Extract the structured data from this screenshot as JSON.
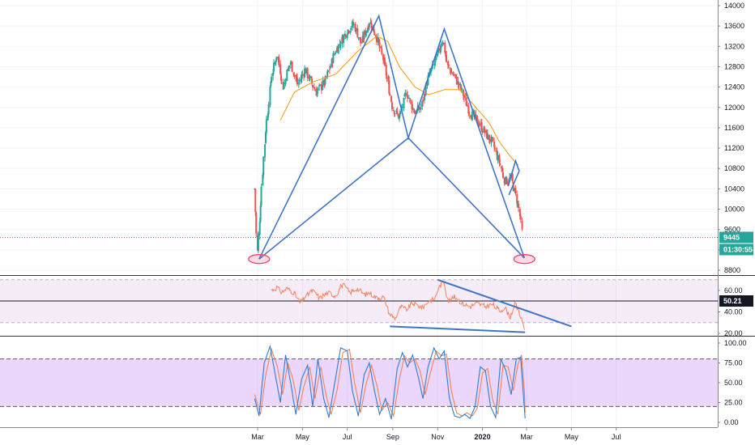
{
  "chart_data": [
    {
      "type": "candlestick",
      "pane": "price",
      "ylim": [
        8800,
        14000
      ],
      "yticks": [
        "14000",
        "13600",
        "13200",
        "12800",
        "12400",
        "12000",
        "11600",
        "11200",
        "10800",
        "10400",
        "10000",
        "9600",
        "9200",
        "8800"
      ],
      "last_price": 9445,
      "last_price_label": "9445",
      "countdown": "01:30:55",
      "candle_anchors": [
        [
          "2019-02-25",
          10400
        ],
        [
          "2019-03-01",
          9120
        ],
        [
          "2019-03-07",
          10500
        ],
        [
          "2019-03-12",
          11500
        ],
        [
          "2019-03-20",
          12600
        ],
        [
          "2019-03-28",
          13050
        ],
        [
          "2019-04-05",
          12400
        ],
        [
          "2019-04-15",
          12900
        ],
        [
          "2019-04-25",
          12450
        ],
        [
          "2019-05-05",
          12750
        ],
        [
          "2019-05-20",
          12300
        ],
        [
          "2019-06-01",
          12500
        ],
        [
          "2019-06-15",
          13100
        ],
        [
          "2019-07-01",
          13500
        ],
        [
          "2019-07-10",
          13650
        ],
        [
          "2019-07-20",
          13250
        ],
        [
          "2019-08-01",
          13700
        ],
        [
          "2019-08-10",
          13400
        ],
        [
          "2019-08-20",
          12900
        ],
        [
          "2019-09-01",
          12000
        ],
        [
          "2019-09-10",
          11800
        ],
        [
          "2019-09-20",
          12300
        ],
        [
          "2019-10-01",
          11900
        ],
        [
          "2019-10-10",
          12000
        ],
        [
          "2019-10-20",
          12600
        ],
        [
          "2019-11-01",
          13000
        ],
        [
          "2019-11-08",
          13350
        ],
        [
          "2019-11-15",
          12800
        ],
        [
          "2019-11-25",
          12600
        ],
        [
          "2019-12-05",
          12300
        ],
        [
          "2019-12-15",
          11900
        ],
        [
          "2019-12-25",
          11750
        ],
        [
          "2020-01-05",
          11500
        ],
        [
          "2020-01-15",
          11300
        ],
        [
          "2020-01-25",
          10900
        ],
        [
          "2020-02-01",
          10550
        ],
        [
          "2020-02-10",
          10600
        ],
        [
          "2020-02-15",
          10300
        ],
        [
          "2020-02-20",
          10000
        ],
        [
          "2020-02-25",
          9445
        ]
      ],
      "ma_anchors": [
        [
          "2019-04-01",
          11750
        ],
        [
          "2019-04-20",
          12300
        ],
        [
          "2019-05-15",
          12500
        ],
        [
          "2019-06-15",
          12650
        ],
        [
          "2019-07-15",
          13100
        ],
        [
          "2019-08-10",
          13400
        ],
        [
          "2019-08-25",
          13300
        ],
        [
          "2019-09-10",
          12800
        ],
        [
          "2019-10-01",
          12400
        ],
        [
          "2019-10-20",
          12250
        ],
        [
          "2019-11-10",
          12350
        ],
        [
          "2019-12-01",
          12350
        ],
        [
          "2019-12-20",
          12050
        ],
        [
          "2020-01-10",
          11700
        ],
        [
          "2020-01-25",
          11300
        ],
        [
          "2020-02-10",
          11000
        ],
        [
          "2020-02-20",
          10850
        ]
      ],
      "pattern_lines": [
        [
          [
            "2019-03-03",
            9020
          ],
          [
            "2019-08-13",
            13800
          ],
          [
            "2019-09-22",
            11400
          ],
          [
            "2019-11-10",
            13540
          ],
          [
            "2020-02-27",
            9040
          ]
        ],
        [
          [
            "2019-03-03",
            9020
          ],
          [
            "2019-09-22",
            11400
          ],
          [
            "2020-02-27",
            9040
          ]
        ],
        [
          [
            "2020-02-05",
            10450
          ],
          [
            "2020-02-15",
            10950
          ],
          [
            "2020-02-20",
            10750
          ],
          [
            "2020-02-06",
            10280
          ]
        ]
      ],
      "highlight_points": [
        [
          "2019-03-03",
          9020
        ],
        [
          "2020-02-27",
          9020
        ]
      ],
      "colors": {
        "up": "#26a69a",
        "down": "#ef5350",
        "ma": "#ff9800",
        "pattern": "#3f75c9",
        "highlight": "#ff3d6e",
        "last_price": "#26a69a"
      }
    },
    {
      "type": "line",
      "pane": "rsi",
      "ylim": [
        18,
        73
      ],
      "yticks": [
        "60.00",
        "40.00",
        "20.00"
      ],
      "band": [
        30,
        70
      ],
      "level_line": 50.21,
      "level_label": "50.21",
      "anchors": [
        [
          "2019-03-20",
          60
        ],
        [
          "2019-03-28",
          63
        ],
        [
          "2019-04-03",
          58
        ],
        [
          "2019-04-10",
          62
        ],
        [
          "2019-04-20",
          58
        ],
        [
          "2019-04-28",
          48
        ],
        [
          "2019-05-05",
          54
        ],
        [
          "2019-05-15",
          60
        ],
        [
          "2019-05-25",
          53
        ],
        [
          "2019-06-05",
          58
        ],
        [
          "2019-06-15",
          55
        ],
        [
          "2019-06-25",
          66
        ],
        [
          "2019-07-05",
          58
        ],
        [
          "2019-07-15",
          62
        ],
        [
          "2019-07-25",
          56
        ],
        [
          "2019-08-01",
          58
        ],
        [
          "2019-08-10",
          53
        ],
        [
          "2019-08-20",
          54
        ],
        [
          "2019-08-28",
          38
        ],
        [
          "2019-09-05",
          34
        ],
        [
          "2019-09-12",
          45
        ],
        [
          "2019-09-20",
          42
        ],
        [
          "2019-09-28",
          48
        ],
        [
          "2019-10-05",
          46
        ],
        [
          "2019-10-12",
          44
        ],
        [
          "2019-10-20",
          50
        ],
        [
          "2019-10-28",
          52
        ],
        [
          "2019-11-04",
          64
        ],
        [
          "2019-11-10",
          68
        ],
        [
          "2019-11-16",
          50
        ],
        [
          "2019-11-25",
          54
        ],
        [
          "2019-12-05",
          48
        ],
        [
          "2019-12-15",
          45
        ],
        [
          "2019-12-25",
          48
        ],
        [
          "2020-01-05",
          45
        ],
        [
          "2020-01-15",
          47
        ],
        [
          "2020-01-25",
          41
        ],
        [
          "2020-02-01",
          44
        ],
        [
          "2020-02-08",
          35
        ],
        [
          "2020-02-15",
          48
        ],
        [
          "2020-02-20",
          40
        ],
        [
          "2020-02-25",
          30
        ],
        [
          "2020-02-28",
          22
        ]
      ],
      "trend_lines": [
        [
          [
            "2019-11-01",
            70
          ],
          [
            "2020-05-01",
            26.5
          ]
        ],
        [
          [
            "2019-08-28",
            26.5
          ],
          [
            "2020-02-28",
            21
          ]
        ]
      ],
      "colors": {
        "line": "#f0845c",
        "band": "#9c27b0",
        "trend": "#3f75c9",
        "level": "#131722"
      }
    },
    {
      "type": "line",
      "pane": "stoch_rsi",
      "ylim": [
        -5,
        102
      ],
      "yticks": [
        "100.00",
        "75.00",
        "50.00",
        "25.00",
        "0.00"
      ],
      "band": [
        20,
        80
      ],
      "k_anchors": [
        [
          "2019-02-25",
          30
        ],
        [
          "2019-03-03",
          8
        ],
        [
          "2019-03-10",
          75
        ],
        [
          "2019-03-18",
          96
        ],
        [
          "2019-03-25",
          60
        ],
        [
          "2019-04-01",
          25
        ],
        [
          "2019-04-08",
          85
        ],
        [
          "2019-04-15",
          50
        ],
        [
          "2019-04-22",
          10
        ],
        [
          "2019-04-30",
          55
        ],
        [
          "2019-05-08",
          72
        ],
        [
          "2019-05-15",
          20
        ],
        [
          "2019-05-22",
          80
        ],
        [
          "2019-05-30",
          30
        ],
        [
          "2019-06-06",
          6
        ],
        [
          "2019-06-14",
          50
        ],
        [
          "2019-06-22",
          94
        ],
        [
          "2019-07-01",
          90
        ],
        [
          "2019-07-08",
          40
        ],
        [
          "2019-07-16",
          8
        ],
        [
          "2019-07-24",
          60
        ],
        [
          "2019-07-31",
          75
        ],
        [
          "2019-08-07",
          40
        ],
        [
          "2019-08-14",
          10
        ],
        [
          "2019-08-22",
          30
        ],
        [
          "2019-08-30",
          4
        ],
        [
          "2019-09-07",
          68
        ],
        [
          "2019-09-14",
          88
        ],
        [
          "2019-09-21",
          70
        ],
        [
          "2019-09-28",
          85
        ],
        [
          "2019-10-05",
          60
        ],
        [
          "2019-10-12",
          30
        ],
        [
          "2019-10-19",
          70
        ],
        [
          "2019-10-27",
          94
        ],
        [
          "2019-11-03",
          80
        ],
        [
          "2019-11-10",
          90
        ],
        [
          "2019-11-17",
          30
        ],
        [
          "2019-11-24",
          8
        ],
        [
          "2019-12-01",
          6
        ],
        [
          "2019-12-08",
          10
        ],
        [
          "2019-12-15",
          5
        ],
        [
          "2019-12-22",
          20
        ],
        [
          "2019-12-29",
          70
        ],
        [
          "2020-01-05",
          65
        ],
        [
          "2020-01-12",
          20
        ],
        [
          "2020-01-19",
          6
        ],
        [
          "2020-01-26",
          80
        ],
        [
          "2020-02-02",
          65
        ],
        [
          "2020-02-09",
          35
        ],
        [
          "2020-02-16",
          80
        ],
        [
          "2020-02-22",
          82
        ],
        [
          "2020-02-26",
          30
        ],
        [
          "2020-02-28",
          5
        ]
      ],
      "d_anchors": [
        [
          "2019-02-25",
          35
        ],
        [
          "2019-03-05",
          10
        ],
        [
          "2019-03-12",
          60
        ],
        [
          "2019-03-20",
          92
        ],
        [
          "2019-03-28",
          70
        ],
        [
          "2019-04-04",
          35
        ],
        [
          "2019-04-11",
          75
        ],
        [
          "2019-04-18",
          55
        ],
        [
          "2019-04-26",
          15
        ],
        [
          "2019-05-03",
          45
        ],
        [
          "2019-05-11",
          70
        ],
        [
          "2019-05-18",
          30
        ],
        [
          "2019-05-26",
          70
        ],
        [
          "2019-06-02",
          35
        ],
        [
          "2019-06-09",
          10
        ],
        [
          "2019-06-17",
          40
        ],
        [
          "2019-06-25",
          88
        ],
        [
          "2019-07-04",
          92
        ],
        [
          "2019-07-11",
          50
        ],
        [
          "2019-07-19",
          12
        ],
        [
          "2019-07-27",
          50
        ],
        [
          "2019-08-03",
          72
        ],
        [
          "2019-08-10",
          48
        ],
        [
          "2019-08-17",
          15
        ],
        [
          "2019-08-25",
          25
        ],
        [
          "2019-09-02",
          8
        ],
        [
          "2019-09-10",
          55
        ],
        [
          "2019-09-17",
          84
        ],
        [
          "2019-09-24",
          75
        ],
        [
          "2019-10-01",
          80
        ],
        [
          "2019-10-08",
          65
        ],
        [
          "2019-10-15",
          35
        ],
        [
          "2019-10-22",
          62
        ],
        [
          "2019-10-30",
          90
        ],
        [
          "2019-11-06",
          84
        ],
        [
          "2019-11-13",
          86
        ],
        [
          "2019-11-20",
          38
        ],
        [
          "2019-11-27",
          12
        ],
        [
          "2019-12-04",
          8
        ],
        [
          "2019-12-11",
          12
        ],
        [
          "2019-12-18",
          8
        ],
        [
          "2019-12-25",
          18
        ],
        [
          "2020-01-01",
          62
        ],
        [
          "2020-01-08",
          68
        ],
        [
          "2020-01-15",
          28
        ],
        [
          "2020-01-22",
          10
        ],
        [
          "2020-01-29",
          72
        ],
        [
          "2020-02-05",
          70
        ],
        [
          "2020-02-12",
          40
        ],
        [
          "2020-02-18",
          72
        ],
        [
          "2020-02-23",
          85
        ],
        [
          "2020-02-27",
          40
        ],
        [
          "2020-02-28",
          12
        ]
      ],
      "colors": {
        "k": "#2e7dd1",
        "d": "#f0845c",
        "band": "#9c27b0"
      }
    }
  ],
  "x_axis": {
    "domain": [
      "2019-01-01",
      "2020-08-01"
    ],
    "labels": [
      {
        "text": "Mar",
        "date": "2019-03-01",
        "bold": false
      },
      {
        "text": "May",
        "date": "2019-05-01",
        "bold": false
      },
      {
        "text": "Jul",
        "date": "2019-07-01",
        "bold": false
      },
      {
        "text": "Sep",
        "date": "2019-09-01",
        "bold": false
      },
      {
        "text": "Nov",
        "date": "2019-11-01",
        "bold": false
      },
      {
        "text": "2020",
        "date": "2020-01-01",
        "bold": true
      },
      {
        "text": "Mar",
        "date": "2020-03-01",
        "bold": false
      },
      {
        "text": "May",
        "date": "2020-05-01",
        "bold": false
      },
      {
        "text": "Jul",
        "date": "2020-07-01",
        "bold": false
      }
    ]
  }
}
